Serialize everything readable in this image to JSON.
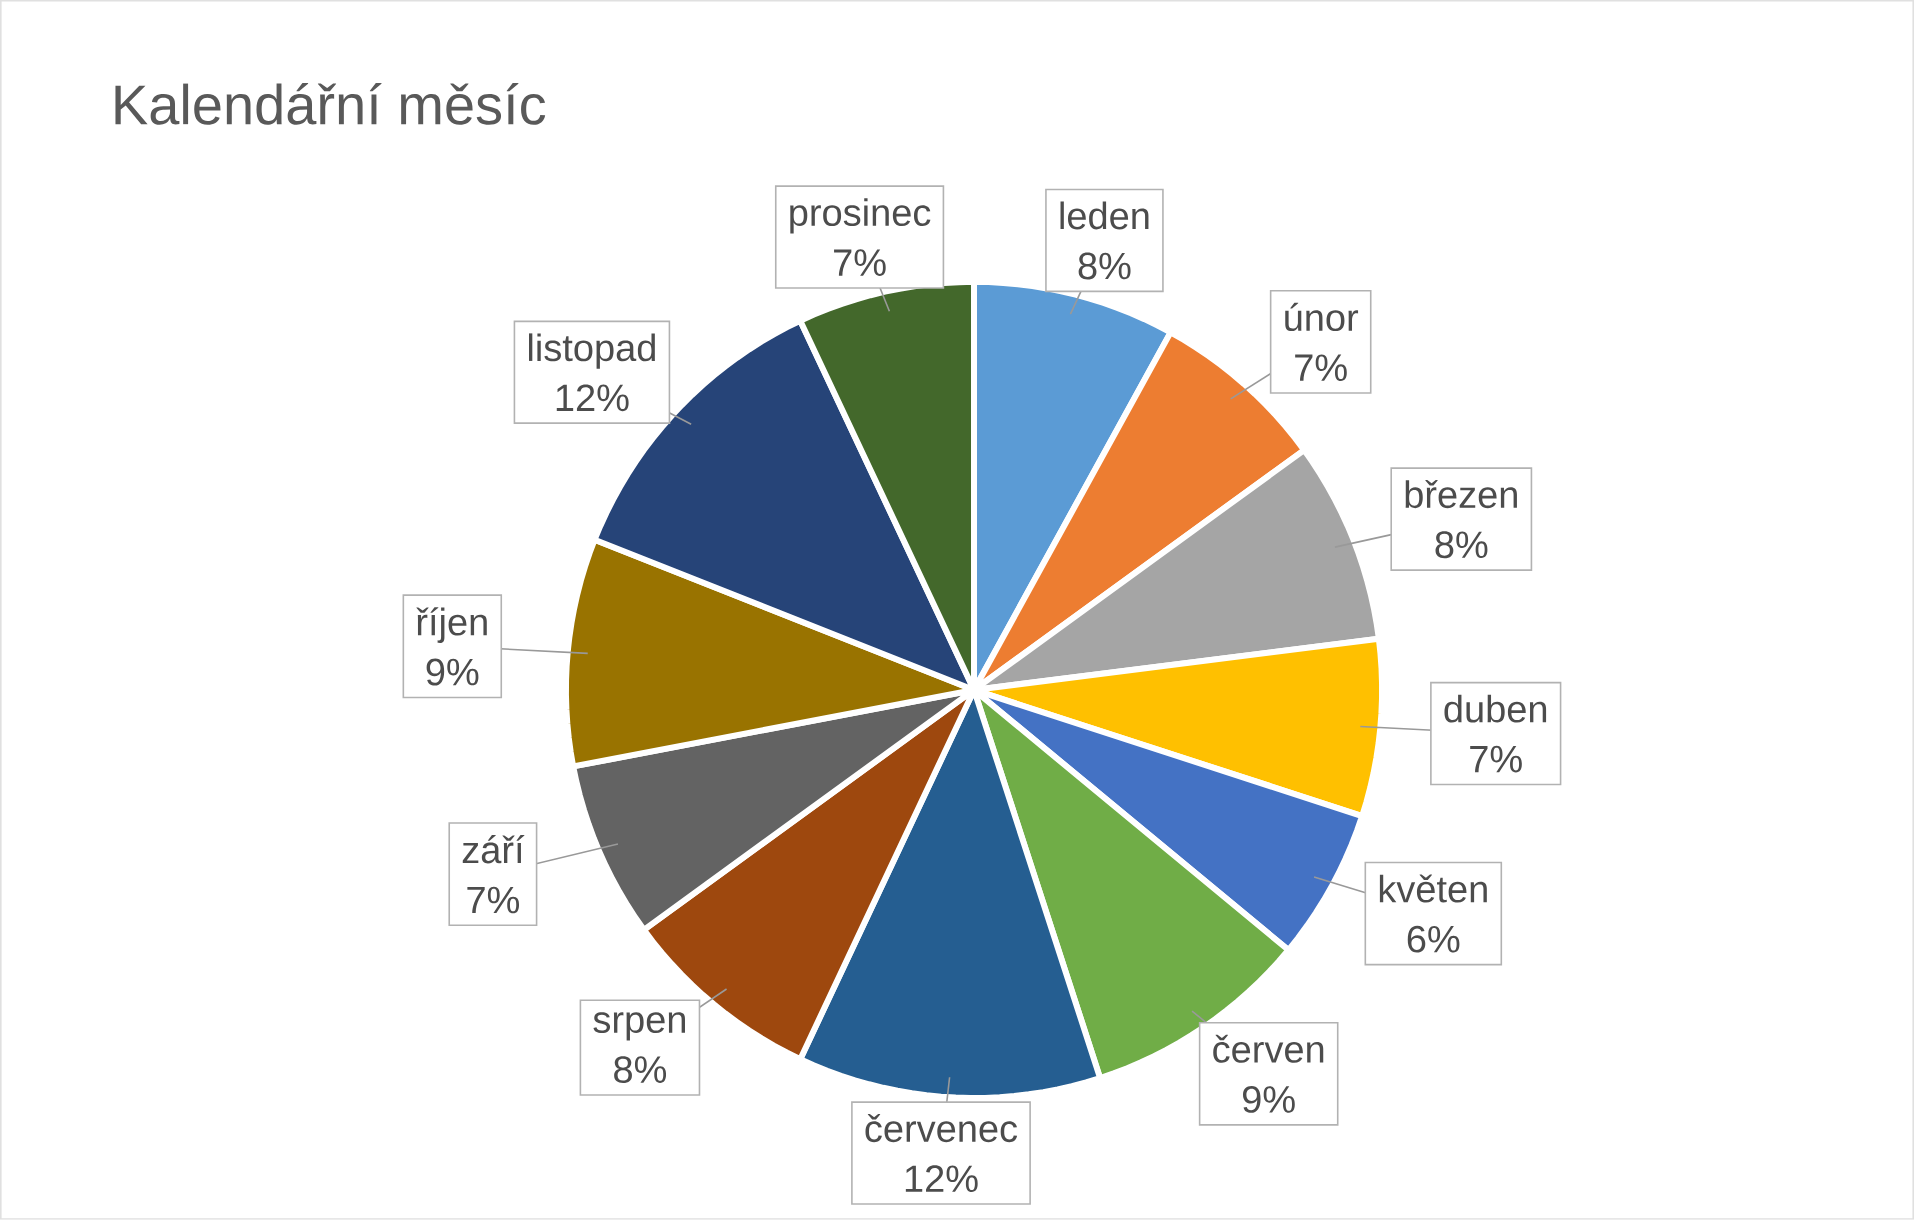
{
  "chart_data": {
    "type": "pie",
    "title": "Kalendářní měsíc",
    "categories": [
      "leden",
      "únor",
      "březen",
      "duben",
      "květen",
      "červen",
      "červenec",
      "srpen",
      "září",
      "říjen",
      "listopad",
      "prosinec"
    ],
    "values": [
      8,
      7,
      8,
      7,
      6,
      9,
      12,
      8,
      7,
      9,
      12,
      7
    ],
    "value_labels": [
      "8%",
      "7%",
      "8%",
      "7%",
      "6%",
      "9%",
      "12%",
      "8%",
      "7%",
      "9%",
      "12%",
      "7%"
    ],
    "colors": [
      "#5b9bd5",
      "#ed7d31",
      "#a5a5a5",
      "#ffc000",
      "#4472c4",
      "#70ad47",
      "#255e91",
      "#9e480e",
      "#636363",
      "#997300",
      "#264478",
      "#43682b"
    ]
  }
}
